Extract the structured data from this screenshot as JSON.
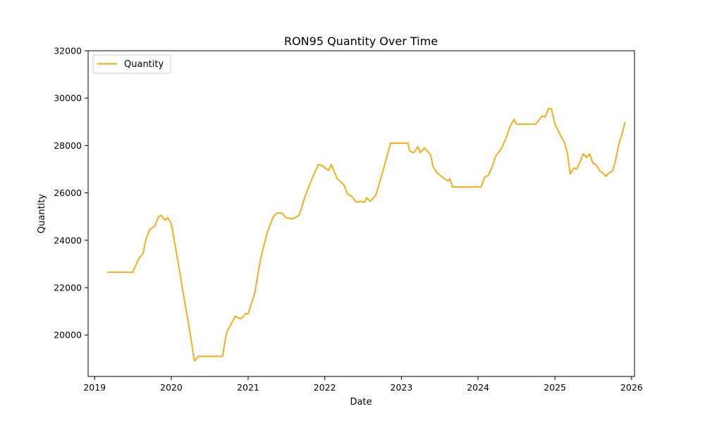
{
  "chart_data": {
    "type": "line",
    "title": "RON95 Quantity Over Time",
    "xlabel": "Date",
    "ylabel": "Quantity",
    "xlim": [
      "2018-12-01",
      "2026-01-15"
    ],
    "ylim": [
      18250,
      32000
    ],
    "x_ticks": [
      "2019",
      "2020",
      "2021",
      "2022",
      "2023",
      "2024",
      "2025",
      "2026"
    ],
    "y_ticks": [
      20000,
      22000,
      24000,
      26000,
      28000,
      30000,
      32000
    ],
    "legend": {
      "placement": "upper-left",
      "entries": [
        "Quantity"
      ]
    },
    "grid": false,
    "series": [
      {
        "name": "Quantity",
        "color": "#FFA500",
        "points": [
          [
            "2019-03-01",
            22650
          ],
          [
            "2019-04-01",
            22650
          ],
          [
            "2019-05-01",
            22650
          ],
          [
            "2019-06-01",
            22650
          ],
          [
            "2019-07-01",
            22650
          ],
          [
            "2019-08-01",
            23250
          ],
          [
            "2019-08-20",
            23450
          ],
          [
            "2019-09-01",
            24000
          ],
          [
            "2019-09-20",
            24450
          ],
          [
            "2019-10-15",
            24600
          ],
          [
            "2019-11-01",
            25000
          ],
          [
            "2019-11-15",
            25050
          ],
          [
            "2019-12-01",
            24850
          ],
          [
            "2019-12-15",
            24950
          ],
          [
            "2020-01-01",
            24700
          ],
          [
            "2020-02-01",
            23150
          ],
          [
            "2020-03-01",
            21600
          ],
          [
            "2020-04-01",
            20000
          ],
          [
            "2020-04-20",
            18900
          ],
          [
            "2020-05-10",
            19100
          ],
          [
            "2020-06-01",
            19100
          ],
          [
            "2020-07-01",
            19100
          ],
          [
            "2020-08-01",
            19100
          ],
          [
            "2020-09-01",
            19100
          ],
          [
            "2020-09-20",
            20100
          ],
          [
            "2020-11-01",
            20800
          ],
          [
            "2020-11-20",
            20700
          ],
          [
            "2020-12-01",
            20700
          ],
          [
            "2020-12-20",
            20900
          ],
          [
            "2021-01-01",
            20900
          ],
          [
            "2021-02-01",
            21750
          ],
          [
            "2021-03-01",
            23200
          ],
          [
            "2021-04-01",
            24300
          ],
          [
            "2021-05-01",
            25000
          ],
          [
            "2021-05-20",
            25150
          ],
          [
            "2021-06-10",
            25150
          ],
          [
            "2021-07-01",
            24950
          ],
          [
            "2021-08-01",
            24900
          ],
          [
            "2021-09-01",
            25050
          ],
          [
            "2021-10-01",
            25900
          ],
          [
            "2021-11-01",
            26600
          ],
          [
            "2021-12-01",
            27200
          ],
          [
            "2021-12-20",
            27150
          ],
          [
            "2022-01-01",
            27050
          ],
          [
            "2022-01-20",
            26950
          ],
          [
            "2022-02-01",
            27200
          ],
          [
            "2022-03-01",
            26600
          ],
          [
            "2022-04-01",
            26350
          ],
          [
            "2022-04-20",
            25950
          ],
          [
            "2022-05-10",
            25850
          ],
          [
            "2022-06-01",
            25600
          ],
          [
            "2022-06-20",
            25650
          ],
          [
            "2022-07-10",
            25600
          ],
          [
            "2022-07-20",
            25800
          ],
          [
            "2022-08-05",
            25650
          ],
          [
            "2022-09-01",
            25900
          ],
          [
            "2022-10-01",
            26800
          ],
          [
            "2022-11-01",
            27800
          ],
          [
            "2022-11-10",
            28100
          ],
          [
            "2022-12-01",
            28100
          ],
          [
            "2023-01-01",
            28100
          ],
          [
            "2023-02-01",
            28100
          ],
          [
            "2023-02-10",
            27750
          ],
          [
            "2023-03-01",
            27700
          ],
          [
            "2023-03-20",
            27950
          ],
          [
            "2023-04-01",
            27700
          ],
          [
            "2023-04-20",
            27900
          ],
          [
            "2023-05-01",
            27800
          ],
          [
            "2023-05-20",
            27600
          ],
          [
            "2023-06-01",
            27100
          ],
          [
            "2023-06-20",
            26850
          ],
          [
            "2023-07-10",
            26700
          ],
          [
            "2023-07-25",
            26600
          ],
          [
            "2023-08-10",
            26500
          ],
          [
            "2023-08-20",
            26600
          ],
          [
            "2023-09-01",
            26250
          ],
          [
            "2023-10-01",
            26250
          ],
          [
            "2023-11-01",
            26250
          ],
          [
            "2023-12-01",
            26250
          ],
          [
            "2024-01-01",
            26250
          ],
          [
            "2024-01-15",
            26250
          ],
          [
            "2024-02-01",
            26650
          ],
          [
            "2024-02-20",
            26750
          ],
          [
            "2024-03-10",
            27150
          ],
          [
            "2024-03-25",
            27550
          ],
          [
            "2024-04-20",
            27850
          ],
          [
            "2024-05-15",
            28350
          ],
          [
            "2024-06-01",
            28800
          ],
          [
            "2024-06-20",
            29100
          ],
          [
            "2024-07-01",
            28900
          ],
          [
            "2024-08-01",
            28900
          ],
          [
            "2024-09-01",
            28900
          ],
          [
            "2024-10-01",
            28900
          ],
          [
            "2024-11-01",
            29250
          ],
          [
            "2024-11-15",
            29200
          ],
          [
            "2024-12-01",
            29550
          ],
          [
            "2024-12-15",
            29550
          ],
          [
            "2025-01-01",
            28900
          ],
          [
            "2025-02-01",
            28350
          ],
          [
            "2025-02-15",
            28150
          ],
          [
            "2025-03-01",
            27700
          ],
          [
            "2025-03-15",
            26800
          ],
          [
            "2025-04-01",
            27050
          ],
          [
            "2025-04-15",
            27000
          ],
          [
            "2025-05-01",
            27300
          ],
          [
            "2025-05-15",
            27650
          ],
          [
            "2025-06-01",
            27500
          ],
          [
            "2025-06-15",
            27650
          ],
          [
            "2025-07-01",
            27250
          ],
          [
            "2025-07-15",
            27200
          ],
          [
            "2025-08-01",
            26950
          ],
          [
            "2025-08-15",
            26850
          ],
          [
            "2025-09-01",
            26700
          ],
          [
            "2025-09-15",
            26850
          ],
          [
            "2025-10-01",
            26900
          ],
          [
            "2025-10-15",
            27300
          ],
          [
            "2025-11-01",
            28050
          ],
          [
            "2025-11-20",
            28600
          ],
          [
            "2025-12-01",
            29000
          ]
        ]
      }
    ]
  }
}
